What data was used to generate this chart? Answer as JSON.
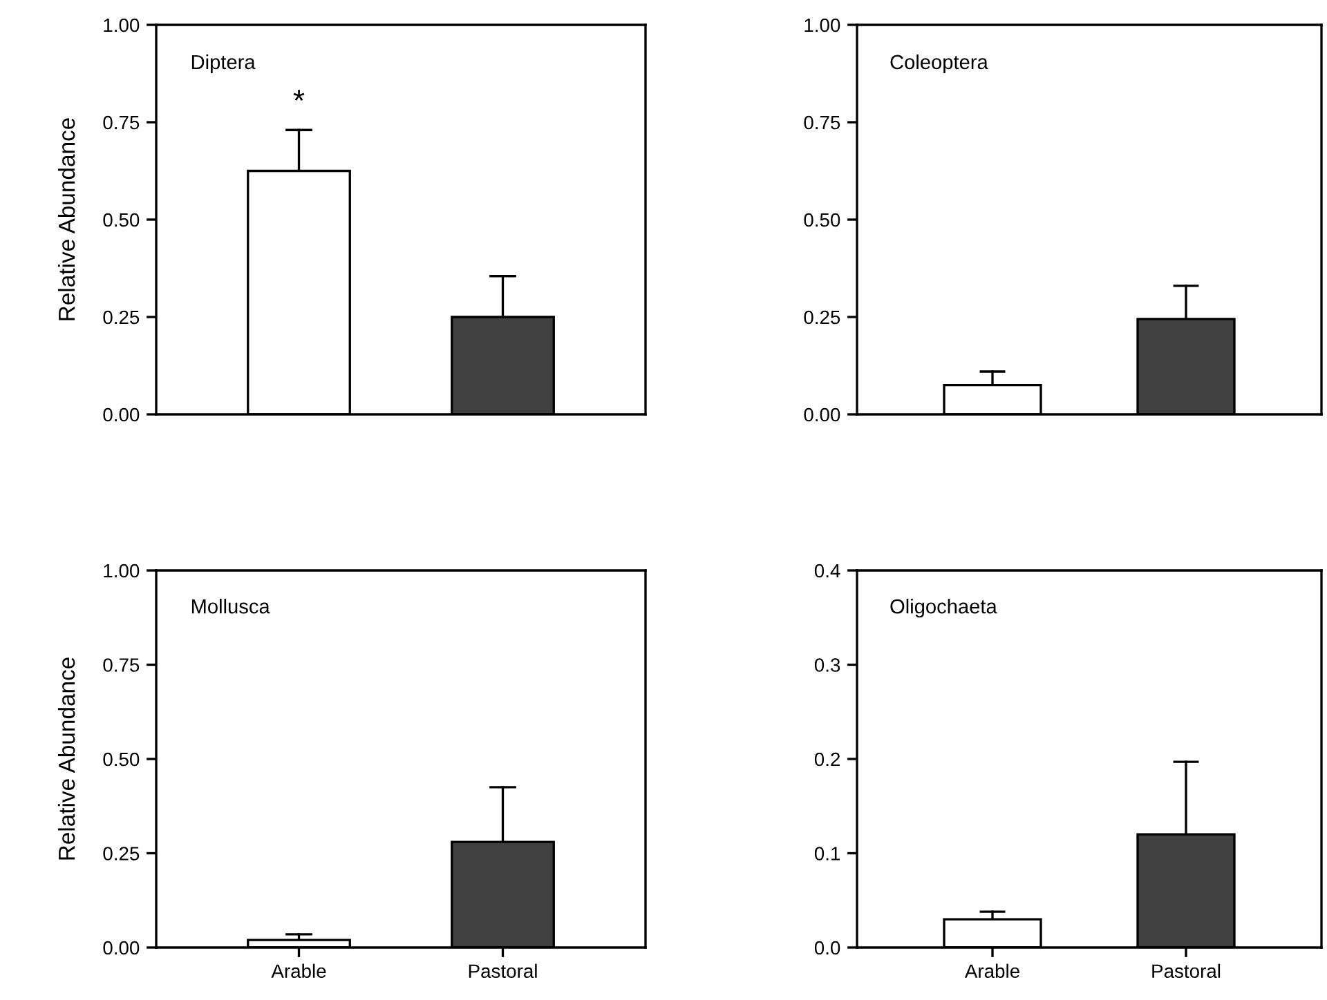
{
  "chart_data": [
    {
      "type": "bar",
      "title": "Diptera",
      "ylabel": "Relative Abundance",
      "categories": [
        null,
        null
      ],
      "values": [
        0.625,
        0.25
      ],
      "colors": [
        "#ffffff",
        "#404040"
      ],
      "errors": [
        [
          0.625,
          0.73
        ],
        [
          0.25,
          0.355
        ]
      ],
      "ylim": [
        0,
        1
      ],
      "yticks": [
        {
          "value": 0,
          "label": "0.00"
        },
        {
          "value": 0.25,
          "label": "0.25"
        },
        {
          "value": 0.5,
          "label": "0.50"
        },
        {
          "value": 0.75,
          "label": "0.75"
        },
        {
          "value": 1,
          "label": "1.00"
        }
      ],
      "tick_labels": "y",
      "annotations": [
        {
          "text": "*",
          "y": 0.73
        }
      ]
    },
    {
      "type": "bar",
      "title": "Coleoptera",
      "categories": [
        null,
        null
      ],
      "values": [
        0.075,
        0.245
      ],
      "colors": [
        "#ffffff",
        "#404040"
      ],
      "errors": [
        [
          0.075,
          0.11
        ],
        [
          0.245,
          0.33
        ]
      ],
      "ylim": [
        0,
        1
      ],
      "yticks": [
        {
          "value": 0,
          "label": "0.00"
        },
        {
          "value": 0.25,
          "label": "0.25"
        },
        {
          "value": 0.5,
          "label": "0.50"
        },
        {
          "value": 0.75,
          "label": "0.75"
        },
        {
          "value": 1,
          "label": "1.00"
        }
      ],
      "tick_labels": "y"
    },
    {
      "type": "bar",
      "title": "Mollusca",
      "ylabel": "Relative Abundance",
      "categories": [
        "Arable",
        "Pastoral"
      ],
      "values": [
        0.02,
        0.28
      ],
      "colors": [
        "#ffffff",
        "#404040"
      ],
      "errors": [
        [
          0.02,
          0.035
        ],
        [
          0.28,
          0.425
        ]
      ],
      "ylim": [
        0,
        1
      ],
      "yticks": [
        {
          "value": 0,
          "label": "0.00"
        },
        {
          "value": 0.25,
          "label": "0.25"
        },
        {
          "value": 0.5,
          "label": "0.50"
        },
        {
          "value": 0.75,
          "label": "0.75"
        },
        {
          "value": 1,
          "label": "1.00"
        }
      ]
    },
    {
      "type": "bar",
      "title": "Oligochaeta",
      "categories": [
        "Arable",
        "Pastoral"
      ],
      "values": [
        0.03,
        0.12
      ],
      "colors": [
        "#ffffff",
        "#404040"
      ],
      "errors": [
        [
          0.03,
          0.038
        ],
        [
          0.12,
          0.197
        ]
      ],
      "ylim": [
        0,
        0.4
      ],
      "yticks": [
        {
          "value": 0,
          "label": "0.0"
        },
        {
          "value": 0.1,
          "label": "0.1"
        },
        {
          "value": 0.2,
          "label": "0.2"
        },
        {
          "value": 0.3,
          "label": "0.3"
        },
        {
          "value": 0.4,
          "label": "0.4"
        }
      ]
    }
  ]
}
